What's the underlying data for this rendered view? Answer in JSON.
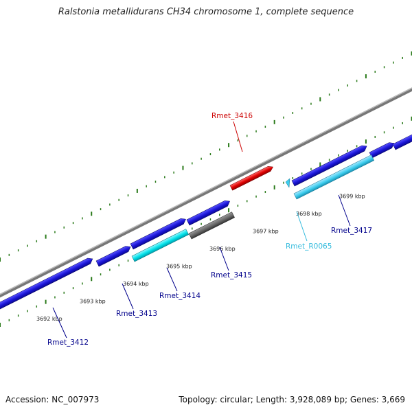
{
  "title": "Ralstonia metallidurans CH34 chromosome 1, complete sequence",
  "footer": {
    "accession": "Accession: NC_007973",
    "summary": "Topology: circular; Length: 3,928,089 bp; Genes: 3,669"
  },
  "scale": {
    "unit": "kbp",
    "labels": [
      {
        "kbp": 3692,
        "text": "3692 kbp"
      },
      {
        "kbp": 3693,
        "text": "3693 kbp"
      },
      {
        "kbp": 3694,
        "text": "3694 kbp"
      },
      {
        "kbp": 3695,
        "text": "3695 kbp"
      },
      {
        "kbp": 3696,
        "text": "3696 kbp"
      },
      {
        "kbp": 3697,
        "text": "3697 kbp"
      },
      {
        "kbp": 3698,
        "text": "3698 kbp"
      },
      {
        "kbp": 3699,
        "text": "3699 kbp"
      }
    ]
  },
  "features": [
    {
      "id": "rmet3412",
      "label": "Rmet_3412",
      "kind": "gene",
      "strand": "forward",
      "color": "#1a14d6"
    },
    {
      "id": "rmet3413",
      "label": "Rmet_3413",
      "kind": "gene",
      "strand": "forward",
      "color": "#1a14d6"
    },
    {
      "id": "rmet3414",
      "label": "Rmet_3414",
      "kind": "gene",
      "strand": "forward",
      "color": "#1a14d6"
    },
    {
      "id": "rmet3415",
      "label": "Rmet_3415",
      "kind": "gene",
      "strand": "forward",
      "color": "#1a14d6"
    },
    {
      "id": "rmet3416",
      "label": "Rmet_3416",
      "kind": "gene",
      "strand": "forward",
      "color": "#e00000"
    },
    {
      "id": "rmet3417",
      "label": "Rmet_3417",
      "kind": "gene",
      "strand": "forward",
      "color": "#1a14d6"
    },
    {
      "id": "rmetr0065",
      "label": "Rmet_R0065",
      "kind": "rRNA",
      "strand": "reverse",
      "color": "#3ccdee"
    }
  ],
  "colors": {
    "cds": "#1a14d6",
    "gene": "#00e0e8",
    "gene_alt": "#3ccdee",
    "pseudo": "#666666",
    "highlight": "#e00000",
    "backbone": "#888888",
    "tick": "#2a7a1a",
    "label": "#00008b",
    "label_highlight": "#cc0000",
    "label_rna": "#33bbdd"
  }
}
